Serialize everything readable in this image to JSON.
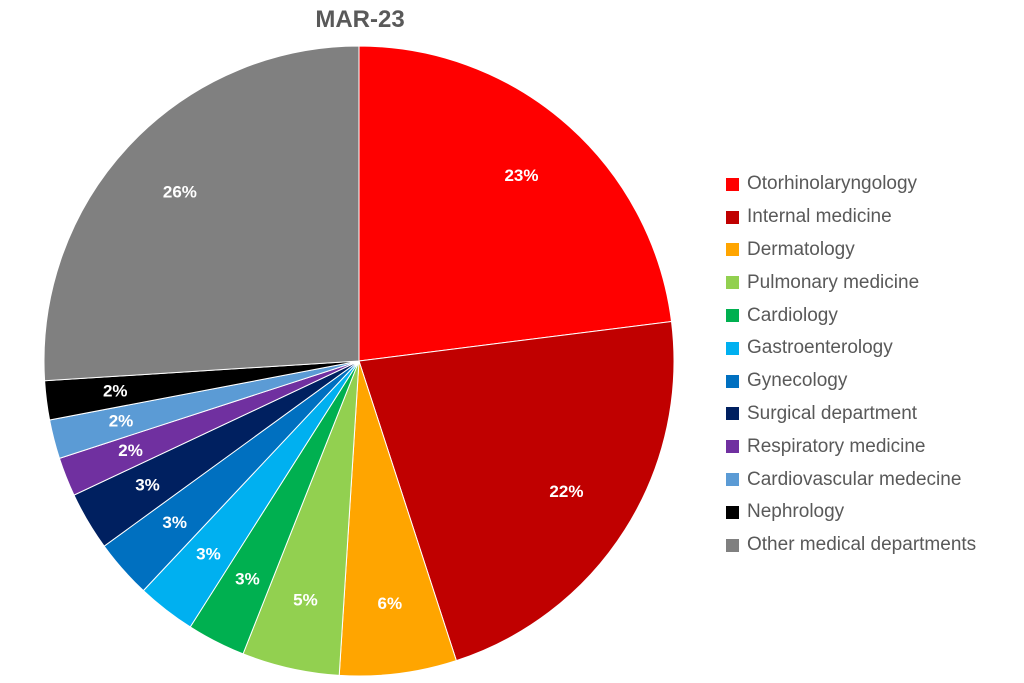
{
  "chart_data": {
    "type": "pie",
    "title": "MAR-23",
    "legend_position": "right",
    "slices": [
      {
        "label": "Otorhinolaryngology",
        "value": 23,
        "display": "23%",
        "color": "#FF0000"
      },
      {
        "label": "Internal medicine",
        "value": 22,
        "display": "22%",
        "color": "#C00000"
      },
      {
        "label": "Dermatology",
        "value": 6,
        "display": "6%",
        "color": "#FFA500"
      },
      {
        "label": "Pulmonary medicine",
        "value": 5,
        "display": "5%",
        "color": "#92D050"
      },
      {
        "label": "Cardiology",
        "value": 3,
        "display": "3%",
        "color": "#00B050"
      },
      {
        "label": "Gastroenterology",
        "value": 3,
        "display": "3%",
        "color": "#00B0F0"
      },
      {
        "label": "Gynecology",
        "value": 3,
        "display": "3%",
        "color": "#0070C0"
      },
      {
        "label": "Surgical department",
        "value": 3,
        "display": "3%",
        "color": "#002060"
      },
      {
        "label": "Respiratory medicine",
        "value": 2,
        "display": "2%",
        "color": "#7030A0"
      },
      {
        "label": "Cardiovascular medecine",
        "value": 2,
        "display": "2%",
        "color": "#5B9BD5"
      },
      {
        "label": "Nephrology",
        "value": 2,
        "display": "2%",
        "color": "#000000"
      },
      {
        "label": "Other medical departments",
        "value": 26,
        "display": "26%",
        "color": "#808080"
      }
    ]
  }
}
